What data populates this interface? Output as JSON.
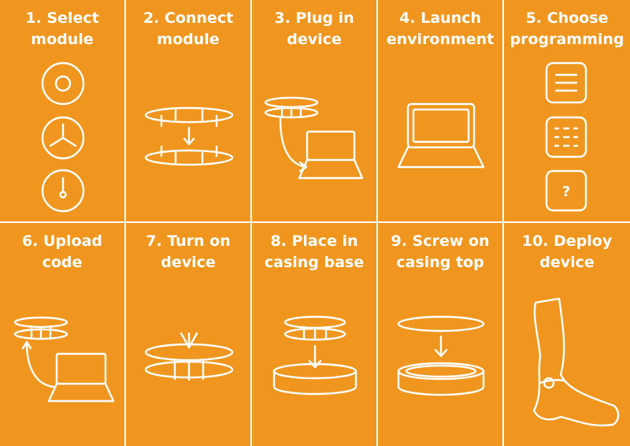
{
  "colors": {
    "background": "#f0961e",
    "line": "#ffffff"
  },
  "steps": [
    {
      "line1": "1. Select",
      "line2": "module",
      "icon": "module-select-icons"
    },
    {
      "line1": "2. Connect",
      "line2": "module",
      "icon": "connect-module-icon"
    },
    {
      "line1": "3. Plug in",
      "line2": "device",
      "icon": "plug-device-icon"
    },
    {
      "line1": "4. Launch",
      "line2": "environment",
      "icon": "laptop-icon"
    },
    {
      "line1": "5. Choose",
      "line2": "programming",
      "icon": "programming-options-icons",
      "unknown_option": "?"
    },
    {
      "line1": "6. Upload",
      "line2": "code",
      "icon": "upload-code-icon"
    },
    {
      "line1": "7. Turn on",
      "line2": "device",
      "icon": "press-device-icon"
    },
    {
      "line1": "8. Place in",
      "line2": "casing base",
      "icon": "casing-base-icon"
    },
    {
      "line1": "9. Screw on",
      "line2": "casing top",
      "icon": "casing-top-icon"
    },
    {
      "line1": "10. Deploy",
      "line2": "device",
      "icon": "leg-wearable-icon"
    }
  ]
}
